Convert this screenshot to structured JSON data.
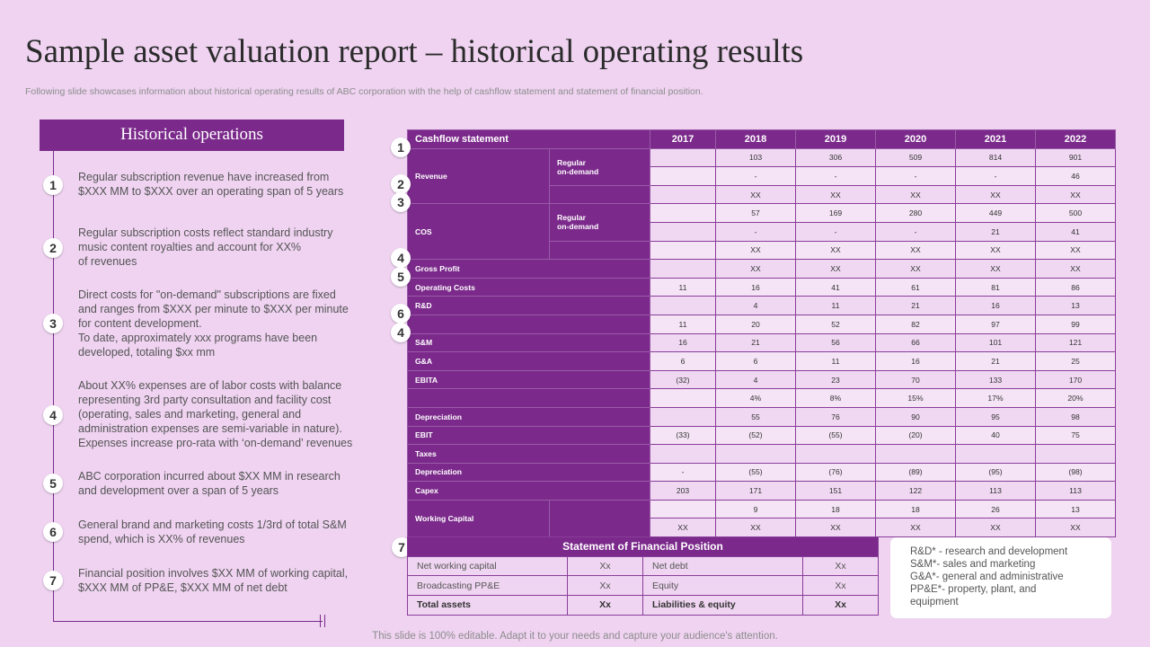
{
  "title": "Sample asset valuation report – historical operating results",
  "subtitle": "Following slide showcases information about historical operating results of ABC corporation with the help of cashflow statement and statement of financial position.",
  "left_panel": {
    "heading": "Historical operations",
    "items": [
      {
        "number": "1",
        "lines": [
          "Regular subscription revenue  have increased from",
          "$XXX  MM to $XXX  over  an operating  span of 5 years"
        ]
      },
      {
        "number": "2",
        "lines": [
          "Regular subscription costs reflect standard industry",
          "music content royalties and account for XX%",
          "of revenues"
        ]
      },
      {
        "number": "3",
        "lines": [
          "Direct costs for \"on-demand\" subscriptions are fixed",
          "and ranges from $XXX   per minute to $XXX   per minute",
          "for content development.",
          "To date,  approximately xxx programs  have  been",
          "developed,  totaling $xx mm"
        ]
      },
      {
        "number": "4",
        "lines": [
          "About XX%  expenses are of labor costs with balance",
          "representing 3rd party consultation and facility cost",
          "(operating,  sales and marketing,  general and",
          "administration expenses are semi-variable  in nature).",
          "Expenses increase pro-rata with ‘on-demand’ revenues"
        ]
      },
      {
        "number": "5",
        "lines": [
          "ABC corporation incurred about $XX  MM in research",
          "and development  over  a span of 5 years"
        ]
      },
      {
        "number": "6",
        "lines": [
          "General brand and marketing costs 1/3rd of total S&M",
          "spend, which is XX%  of revenues"
        ]
      },
      {
        "number": "7",
        "lines": [
          "Financial position involves  $XX  MM of working capital,",
          "$XXX  MM of PP&E, $XXX  MM of net debt"
        ]
      }
    ]
  },
  "cashflow": {
    "header": "Cashflow statement",
    "years": [
      "2017",
      "2018",
      "2019",
      "2020",
      "2021",
      "2022"
    ],
    "row_markers": [
      {
        "label": "1",
        "row": 1
      },
      {
        "label": "2",
        "row": 3
      },
      {
        "label": "3",
        "row": 4
      },
      {
        "label": "4",
        "row": 7
      },
      {
        "label": "5",
        "row": 8
      },
      {
        "label": "6",
        "row": 10
      },
      {
        "label": "4",
        "row": 11
      }
    ],
    "rows": [
      {
        "label": "Revenue",
        "sub": "Regular\non-demand",
        "rowspan": 3,
        "values": [
          "",
          "103",
          "306",
          "509",
          "814",
          "901"
        ]
      },
      {
        "values": [
          "",
          "-",
          "-",
          "-",
          "-",
          "46"
        ]
      },
      {
        "values": [
          "",
          "XX",
          "XX",
          "XX",
          "XX",
          "XX"
        ]
      },
      {
        "label": "COS",
        "sub": "Regular\non-demand",
        "rowspan": 3,
        "values": [
          "",
          "57",
          "169",
          "280",
          "449",
          "500"
        ]
      },
      {
        "values": [
          "",
          "-",
          "-",
          "-",
          "21",
          "41"
        ]
      },
      {
        "values": [
          "",
          "XX",
          "XX",
          "XX",
          "XX",
          "XX"
        ]
      },
      {
        "label": "Gross Profit",
        "values": [
          "",
          "XX",
          "XX",
          "XX",
          "XX",
          "XX"
        ]
      },
      {
        "label": "Operating Costs",
        "values": [
          "11",
          "16",
          "41",
          "61",
          "81",
          "86"
        ]
      },
      {
        "label": "R&D",
        "values": [
          "",
          "4",
          "11",
          "21",
          "16",
          "13"
        ]
      },
      {
        "label": "",
        "values": [
          "11",
          "20",
          "52",
          "82",
          "97",
          "99"
        ]
      },
      {
        "label": "S&M",
        "values": [
          "16",
          "21",
          "56",
          "66",
          "101",
          "121"
        ]
      },
      {
        "label": "G&A",
        "values": [
          "6",
          "6",
          "11",
          "16",
          "21",
          "25"
        ]
      },
      {
        "label": "EBITA",
        "values": [
          "(32)",
          "4",
          "23",
          "70",
          "133",
          "170"
        ]
      },
      {
        "label": "",
        "values": [
          "",
          "4%",
          "8%",
          "15%",
          "17%",
          "20%"
        ]
      },
      {
        "label": "Depreciation",
        "values": [
          "",
          "55",
          "76",
          "90",
          "95",
          "98"
        ]
      },
      {
        "label": "EBIT",
        "values": [
          "(33)",
          "(52)",
          "(55)",
          "(20)",
          "40",
          "75"
        ]
      },
      {
        "label": "Taxes",
        "values": [
          "",
          "",
          "",
          "",
          "",
          ""
        ]
      },
      {
        "label": "Depreciation",
        "values": [
          "-",
          "(55)",
          "(76)",
          "(89)",
          "(95)",
          "(98)"
        ]
      },
      {
        "label": "Capex",
        "values": [
          "203",
          "171",
          "151",
          "122",
          "113",
          "113"
        ]
      },
      {
        "label": "Working Capital",
        "sub": "",
        "rowspan": 2,
        "values": [
          "",
          "9",
          "18",
          "18",
          "26",
          "13"
        ]
      },
      {
        "values": [
          "XX",
          "XX",
          "XX",
          "XX",
          "XX",
          "XX"
        ]
      }
    ]
  },
  "financial_position": {
    "marker": "7",
    "header": "Statement of Financial Position",
    "rows": [
      {
        "a": "Net working capital",
        "b": "Xx",
        "c": "Net debt",
        "d": "Xx"
      },
      {
        "a": "Broadcasting PP&E",
        "b": "Xx",
        "c": "Equity",
        "d": "Xx"
      },
      {
        "a": "Total assets",
        "b": "Xx",
        "c": "Liabilities & equity",
        "d": "Xx"
      }
    ]
  },
  "legend": [
    "R&D* - research and development",
    "S&M*- sales and marketing",
    "G&A*- general and administrative",
    "PP&E*- property, plant, and",
    "equipment"
  ],
  "footer": "This slide is 100% editable. Adapt it to your needs and capture your audience's attention."
}
